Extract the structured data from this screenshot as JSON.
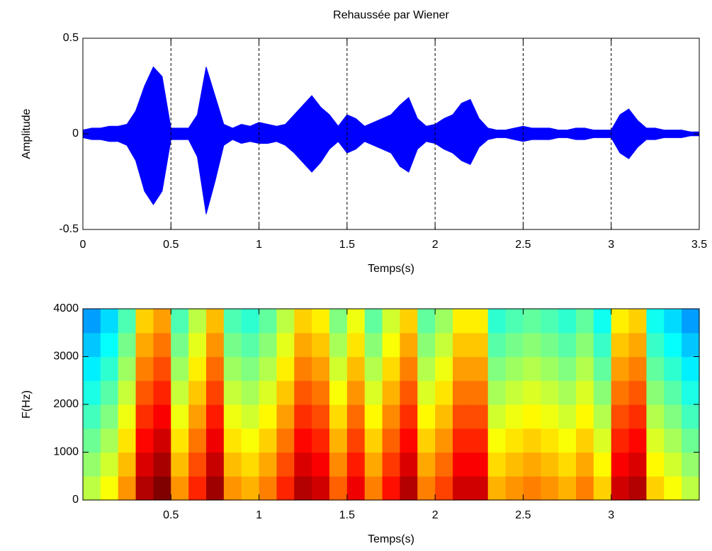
{
  "chart_data": [
    {
      "type": "area",
      "title": "Rehaussée par Wiener",
      "xlabel": "Temps(s)",
      "ylabel": "Amplitude",
      "xlim": [
        0,
        3.5
      ],
      "xticks": [
        0,
        0.5,
        1,
        1.5,
        2,
        2.5,
        3,
        3.5
      ],
      "ylim": [
        -0.5,
        0.5
      ],
      "yticks": [
        -0.5,
        0,
        0.5
      ],
      "grid": "x",
      "x": [
        0,
        0.05,
        0.1,
        0.15,
        0.2,
        0.25,
        0.3,
        0.35,
        0.4,
        0.45,
        0.5,
        0.55,
        0.6,
        0.65,
        0.7,
        0.75,
        0.8,
        0.85,
        0.9,
        0.95,
        1,
        1.05,
        1.1,
        1.15,
        1.2,
        1.25,
        1.3,
        1.35,
        1.4,
        1.45,
        1.5,
        1.55,
        1.6,
        1.65,
        1.7,
        1.75,
        1.8,
        1.85,
        1.9,
        1.95,
        2,
        2.05,
        2.1,
        2.15,
        2.2,
        2.25,
        2.3,
        2.35,
        2.4,
        2.45,
        2.5,
        2.55,
        2.6,
        2.65,
        2.7,
        2.75,
        2.8,
        2.85,
        2.9,
        2.95,
        3,
        3.05,
        3.1,
        3.15,
        3.2,
        3.25,
        3.3,
        3.35,
        3.4,
        3.45,
        3.5
      ],
      "series": [
        {
          "color": "#0000ff",
          "values": [
            0.02,
            0.03,
            0.03,
            0.04,
            0.04,
            0.05,
            0.12,
            0.25,
            0.35,
            0.3,
            0.03,
            0.03,
            0.03,
            0.1,
            0.35,
            0.2,
            0.05,
            0.03,
            0.05,
            0.04,
            0.06,
            0.05,
            0.04,
            0.05,
            0.1,
            0.15,
            0.2,
            0.14,
            0.1,
            0.04,
            0.1,
            0.08,
            0.04,
            0.06,
            0.08,
            0.1,
            0.15,
            0.19,
            0.08,
            0.04,
            0.05,
            0.08,
            0.1,
            0.16,
            0.18,
            0.08,
            0.03,
            0.02,
            0.02,
            0.03,
            0.04,
            0.03,
            0.03,
            0.03,
            0.02,
            0.02,
            0.03,
            0.03,
            0.02,
            0.02,
            0.02,
            0.1,
            0.13,
            0.07,
            0.03,
            0.03,
            0.02,
            0.02,
            0.02,
            0.01,
            0.01
          ]
        },
        {
          "color": "#0000ff",
          "values": [
            -0.02,
            -0.03,
            -0.03,
            -0.04,
            -0.04,
            -0.06,
            -0.14,
            -0.3,
            -0.37,
            -0.3,
            -0.03,
            -0.03,
            -0.03,
            -0.12,
            -0.42,
            -0.25,
            -0.06,
            -0.03,
            -0.05,
            -0.04,
            -0.05,
            -0.05,
            -0.04,
            -0.06,
            -0.1,
            -0.15,
            -0.2,
            -0.15,
            -0.08,
            -0.04,
            -0.1,
            -0.08,
            -0.04,
            -0.06,
            -0.08,
            -0.1,
            -0.17,
            -0.2,
            -0.08,
            -0.04,
            -0.05,
            -0.08,
            -0.1,
            -0.14,
            -0.16,
            -0.07,
            -0.03,
            -0.02,
            -0.02,
            -0.03,
            -0.04,
            -0.03,
            -0.03,
            -0.03,
            -0.02,
            -0.02,
            -0.03,
            -0.03,
            -0.02,
            -0.02,
            -0.02,
            -0.1,
            -0.13,
            -0.07,
            -0.03,
            -0.03,
            -0.02,
            -0.02,
            -0.02,
            -0.01,
            -0.01
          ]
        }
      ]
    },
    {
      "type": "heatmap",
      "xlabel": "Temps(s)",
      "ylabel": "F(Hz)",
      "colormap": "jet",
      "xlim": [
        0,
        3.5
      ],
      "xticks": [
        0.5,
        1,
        1.5,
        2,
        2.5,
        3
      ],
      "ylim": [
        0,
        4000
      ],
      "yticks": [
        0,
        1000,
        2000,
        3000,
        4000
      ],
      "x": [
        0.05,
        0.15,
        0.25,
        0.35,
        0.45,
        0.55,
        0.65,
        0.75,
        0.85,
        0.95,
        1.05,
        1.15,
        1.25,
        1.35,
        1.45,
        1.55,
        1.65,
        1.75,
        1.85,
        1.95,
        2.05,
        2.15,
        2.25,
        2.35,
        2.45,
        2.55,
        2.65,
        2.75,
        2.85,
        2.95,
        3.05,
        3.15,
        3.25,
        3.35,
        3.45
      ],
      "y": [
        250,
        750,
        1250,
        1750,
        2250,
        2750,
        3250,
        3750
      ],
      "values": [
        [
          0.56,
          0.52,
          0.48,
          0.44,
          0.4,
          0.36,
          0.32,
          0.28
        ],
        [
          0.62,
          0.58,
          0.54,
          0.5,
          0.46,
          0.42,
          0.38,
          0.34
        ],
        [
          0.73,
          0.69,
          0.65,
          0.61,
          0.57,
          0.53,
          0.49,
          0.45
        ],
        [
          0.95,
          0.91,
          0.87,
          0.83,
          0.79,
          0.75,
          0.71,
          0.67
        ],
        [
          1.0,
          0.96,
          0.92,
          0.88,
          0.84,
          0.8,
          0.76,
          0.72
        ],
        [
          0.73,
          0.69,
          0.65,
          0.61,
          0.57,
          0.53,
          0.49,
          0.45
        ],
        [
          0.84,
          0.8,
          0.76,
          0.72,
          0.68,
          0.64,
          0.6,
          0.56
        ],
        [
          0.97,
          0.93,
          0.89,
          0.85,
          0.81,
          0.77,
          0.73,
          0.69
        ],
        [
          0.73,
          0.69,
          0.65,
          0.61,
          0.57,
          0.53,
          0.49,
          0.45
        ],
        [
          0.7,
          0.66,
          0.62,
          0.58,
          0.54,
          0.5,
          0.46,
          0.42
        ],
        [
          0.75,
          0.71,
          0.67,
          0.63,
          0.59,
          0.55,
          0.51,
          0.47
        ],
        [
          0.84,
          0.8,
          0.76,
          0.72,
          0.68,
          0.64,
          0.6,
          0.56
        ],
        [
          0.95,
          0.91,
          0.87,
          0.83,
          0.79,
          0.75,
          0.71,
          0.67
        ],
        [
          0.92,
          0.88,
          0.84,
          0.8,
          0.76,
          0.72,
          0.68,
          0.64
        ],
        [
          0.78,
          0.74,
          0.7,
          0.66,
          0.62,
          0.58,
          0.54,
          0.5
        ],
        [
          0.89,
          0.85,
          0.81,
          0.77,
          0.73,
          0.69,
          0.65,
          0.61
        ],
        [
          0.75,
          0.71,
          0.67,
          0.63,
          0.59,
          0.55,
          0.51,
          0.47
        ],
        [
          0.86,
          0.82,
          0.78,
          0.74,
          0.7,
          0.66,
          0.62,
          0.58
        ],
        [
          0.95,
          0.91,
          0.87,
          0.83,
          0.79,
          0.75,
          0.71,
          0.67
        ],
        [
          0.75,
          0.71,
          0.67,
          0.63,
          0.59,
          0.55,
          0.51,
          0.47
        ],
        [
          0.81,
          0.77,
          0.73,
          0.69,
          0.65,
          0.61,
          0.57,
          0.53
        ],
        [
          0.92,
          0.88,
          0.84,
          0.8,
          0.76,
          0.72,
          0.68,
          0.64
        ],
        [
          0.92,
          0.88,
          0.84,
          0.8,
          0.76,
          0.72,
          0.68,
          0.64
        ],
        [
          0.7,
          0.66,
          0.62,
          0.58,
          0.54,
          0.5,
          0.46,
          0.42
        ],
        [
          0.73,
          0.69,
          0.65,
          0.61,
          0.57,
          0.53,
          0.49,
          0.45
        ],
        [
          0.75,
          0.71,
          0.67,
          0.63,
          0.59,
          0.55,
          0.51,
          0.47
        ],
        [
          0.73,
          0.69,
          0.65,
          0.61,
          0.57,
          0.53,
          0.49,
          0.45
        ],
        [
          0.7,
          0.66,
          0.62,
          0.58,
          0.54,
          0.5,
          0.46,
          0.42
        ],
        [
          0.75,
          0.71,
          0.67,
          0.63,
          0.59,
          0.55,
          0.51,
          0.47
        ],
        [
          0.67,
          0.63,
          0.59,
          0.55,
          0.51,
          0.47,
          0.43,
          0.39
        ],
        [
          0.92,
          0.88,
          0.84,
          0.8,
          0.76,
          0.72,
          0.68,
          0.64
        ],
        [
          0.95,
          0.91,
          0.87,
          0.83,
          0.79,
          0.75,
          0.71,
          0.67
        ],
        [
          0.67,
          0.63,
          0.59,
          0.55,
          0.51,
          0.47,
          0.43,
          0.39
        ],
        [
          0.62,
          0.58,
          0.54,
          0.5,
          0.46,
          0.42,
          0.38,
          0.34
        ],
        [
          0.56,
          0.52,
          0.48,
          0.44,
          0.4,
          0.36,
          0.32,
          0.28
        ]
      ]
    }
  ]
}
